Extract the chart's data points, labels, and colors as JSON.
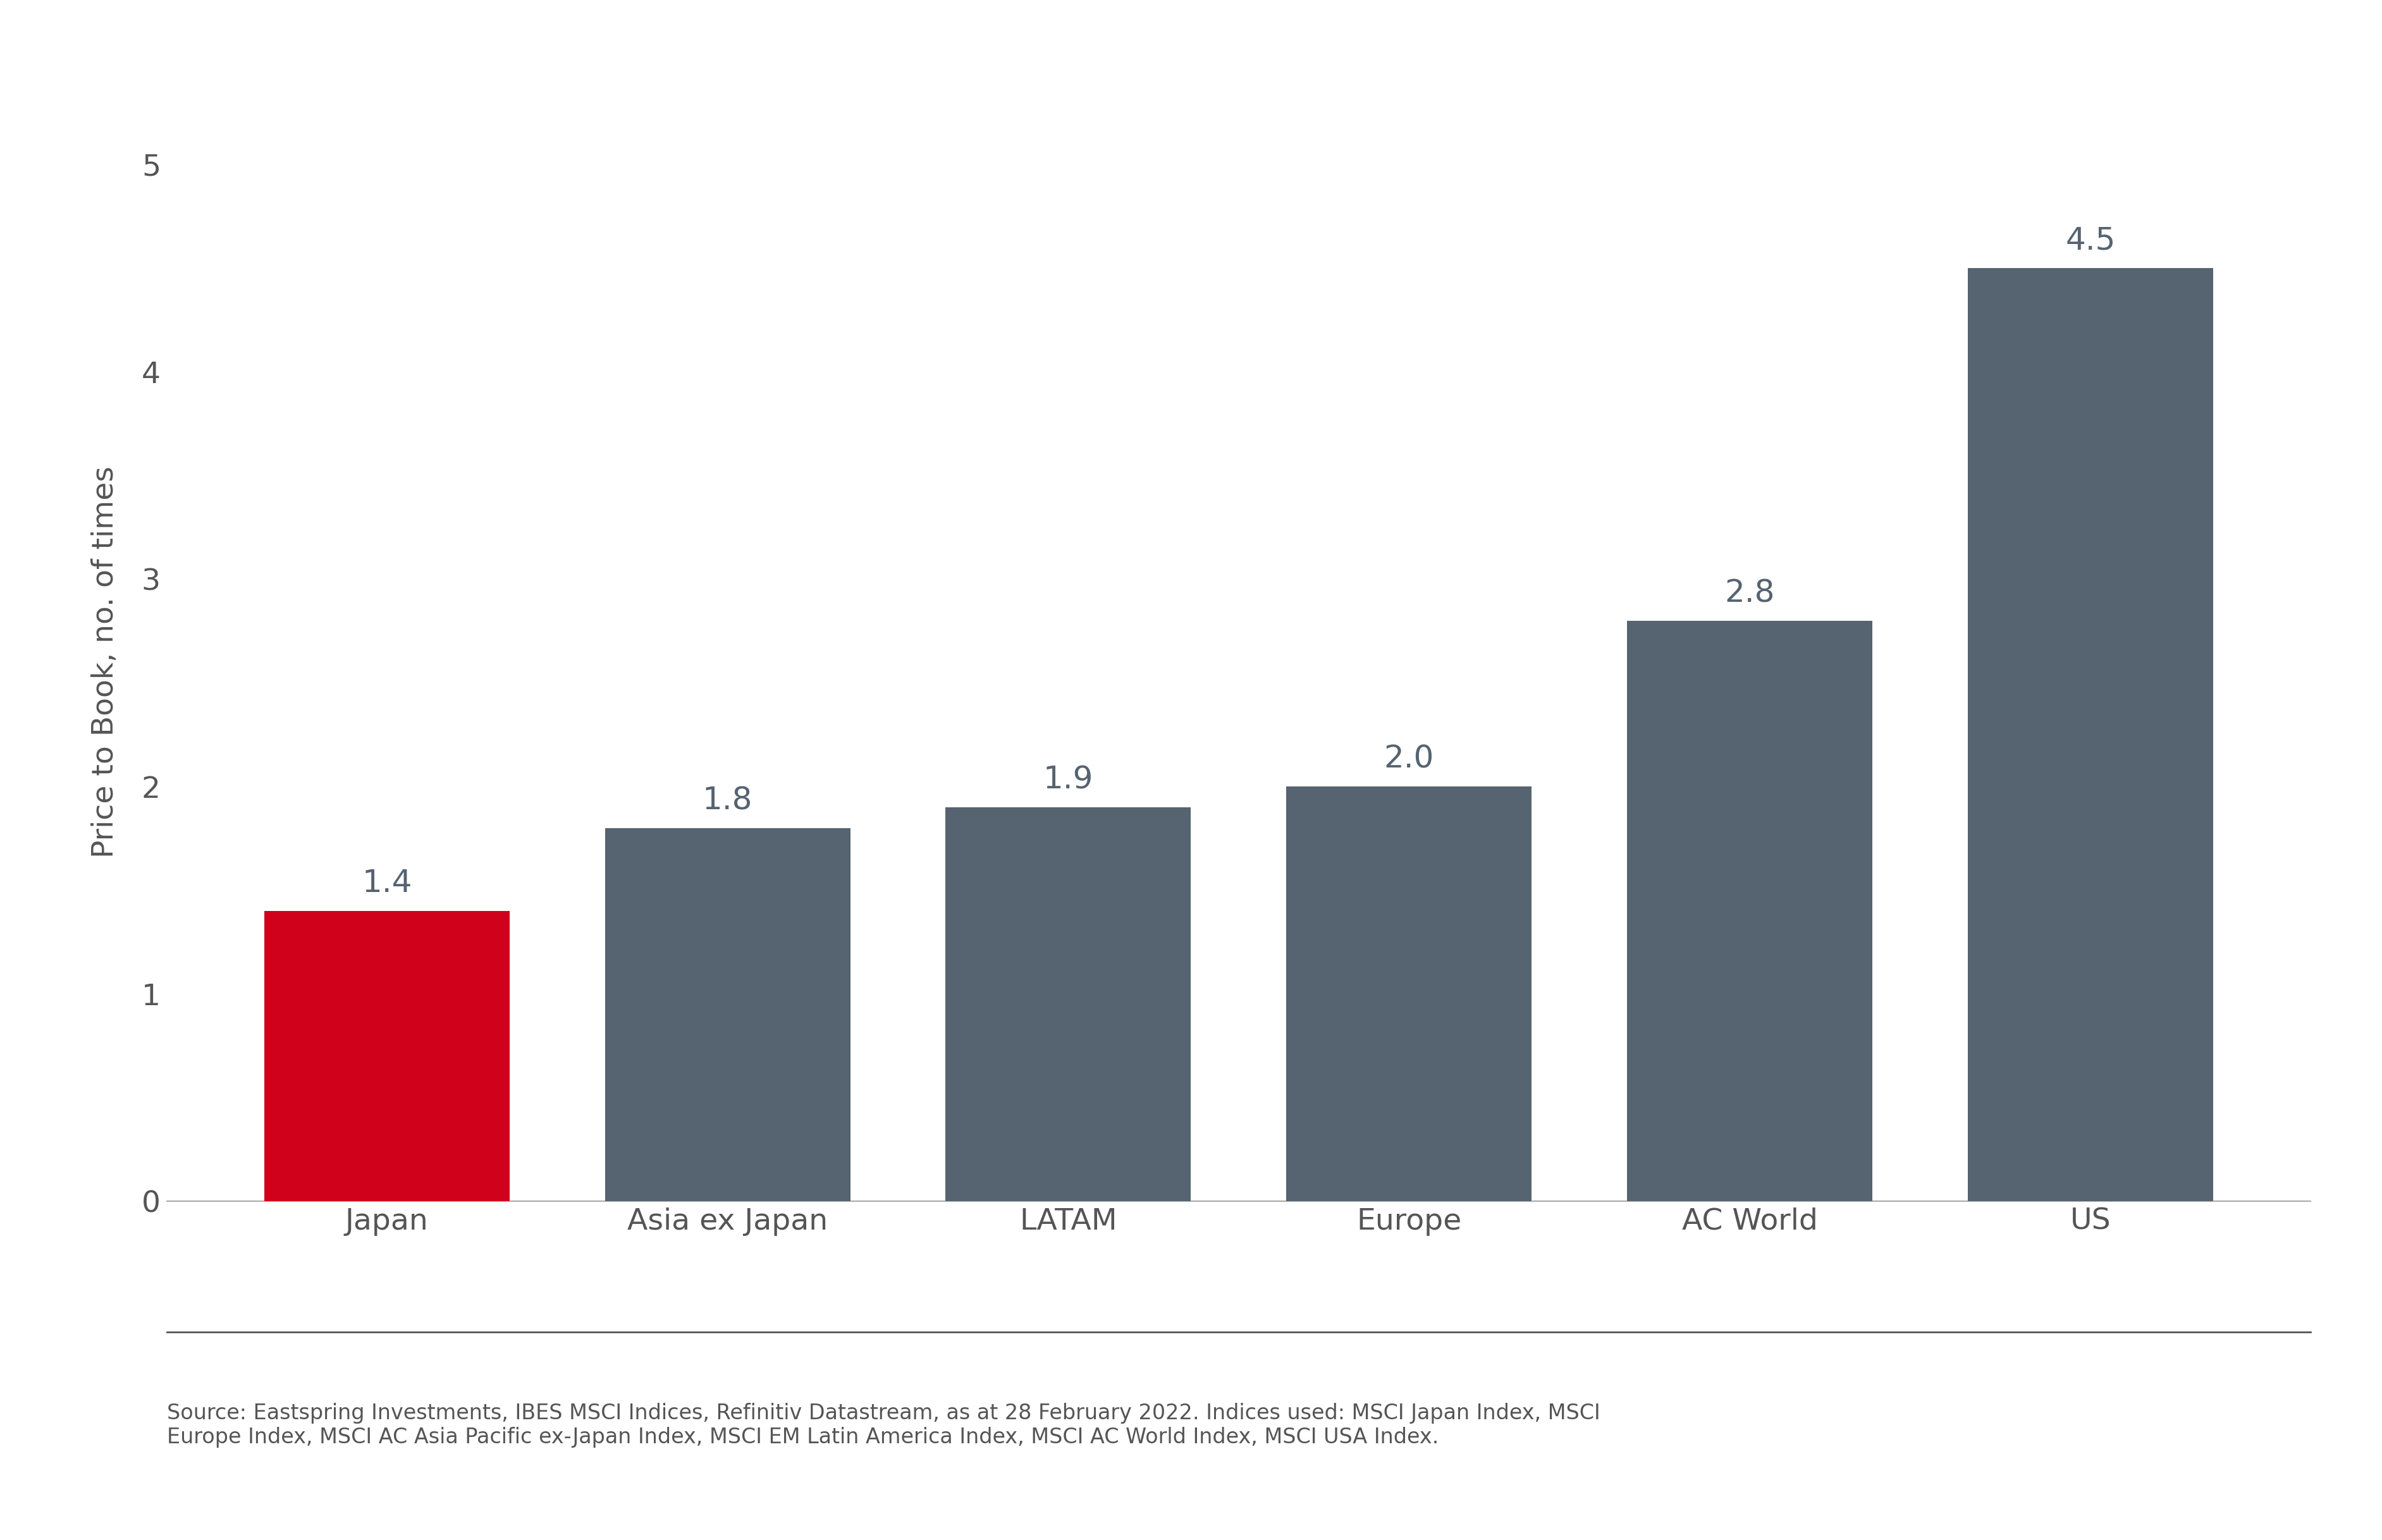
{
  "categories": [
    "Japan",
    "Asia ex Japan",
    "LATAM",
    "Europe",
    "AC World",
    "US"
  ],
  "values": [
    1.4,
    1.8,
    1.9,
    2.0,
    2.8,
    4.5
  ],
  "bar_colors": [
    "#d0021b",
    "#566370",
    "#566370",
    "#566370",
    "#566370",
    "#566370"
  ],
  "ylabel": "Price to Book, no. of times",
  "ylim": [
    0,
    5.2
  ],
  "yticks": [
    0,
    1,
    2,
    3,
    4,
    5
  ],
  "background_color": "#ffffff",
  "bar_label_color": "#566370",
  "bar_label_fontsize": 36,
  "tick_label_fontsize": 34,
  "ylabel_fontsize": 34,
  "source_text": "Source: Eastspring Investments, IBES MSCI Indices, Refinitiv Datastream, as at 28 February 2022. Indices used: MSCI Japan Index, MSCI\nEurope Index, MSCI AC Asia Pacific ex-Japan Index, MSCI EM Latin America Index, MSCI AC World Index, MSCI USA Index.",
  "source_fontsize": 24,
  "source_color": "#555555",
  "axis_line_color": "#aaaaaa",
  "tick_color": "#555555",
  "bar_width": 0.72,
  "separator_color": "#555555"
}
